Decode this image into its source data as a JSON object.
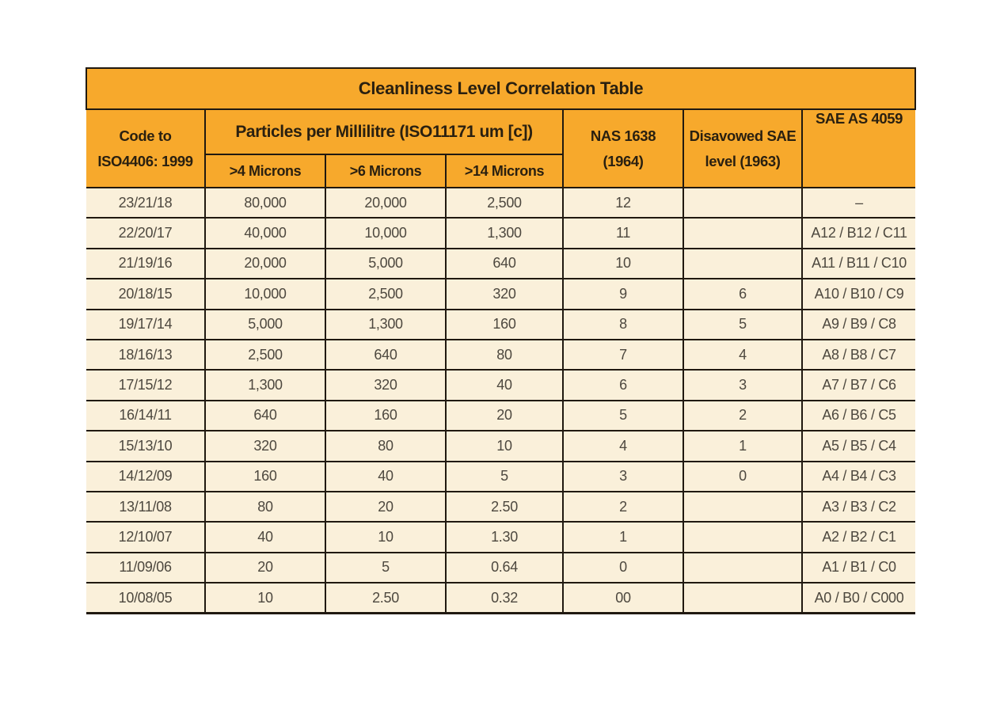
{
  "title": "Cleanliness Level Correlation Table",
  "colors": {
    "header_bg": "#F7A92C",
    "row_bg": "#FAF0DA",
    "border": "#201910",
    "header_text": "#2A2010",
    "data_text": "#4D483F",
    "page_bg": "#FFFFFF"
  },
  "header": {
    "code_col": "Code to\nISO4406: 1999",
    "particles_group": "Particles per Millilitre (ISO11171 um [c])",
    "micron_cols": [
      ">4 Microns",
      ">6 Microns",
      ">14 Microns"
    ],
    "nas_col": "NAS 1638\n(1964)",
    "disavowed_col": "Disavowed SAE\nlevel (1963)",
    "sae_col": "SAE AS 4059"
  },
  "rows": [
    [
      "23/21/18",
      "80,000",
      "20,000",
      "2,500",
      "12",
      "",
      "–"
    ],
    [
      "22/20/17",
      "40,000",
      "10,000",
      "1,300",
      "11",
      "",
      "A12 / B12 / C11"
    ],
    [
      "21/19/16",
      "20,000",
      "5,000",
      "640",
      "10",
      "",
      "A11 / B11 / C10"
    ],
    [
      "20/18/15",
      "10,000",
      "2,500",
      "320",
      "9",
      "6",
      "A10 / B10 / C9"
    ],
    [
      "19/17/14",
      "5,000",
      "1,300",
      "160",
      "8",
      "5",
      "A9 / B9 / C8"
    ],
    [
      "18/16/13",
      "2,500",
      "640",
      "80",
      "7",
      "4",
      "A8 / B8 / C7"
    ],
    [
      "17/15/12",
      "1,300",
      "320",
      "40",
      "6",
      "3",
      "A7 / B7 / C6"
    ],
    [
      "16/14/11",
      "640",
      "160",
      "20",
      "5",
      "2",
      "A6 / B6 / C5"
    ],
    [
      "15/13/10",
      "320",
      "80",
      "10",
      "4",
      "1",
      "A5 / B5 / C4"
    ],
    [
      "14/12/09",
      "160",
      "40",
      "5",
      "3",
      "0",
      "A4 / B4 / C3"
    ],
    [
      "13/11/08",
      "80",
      "20",
      "2.50",
      "2",
      "",
      "A3 / B3 / C2"
    ],
    [
      "12/10/07",
      "40",
      "10",
      "1.30",
      "1",
      "",
      "A2 / B2 / C1"
    ],
    [
      "11/09/06",
      "20",
      "5",
      "0.64",
      "0",
      "",
      "A1 / B1 / C0"
    ],
    [
      "10/08/05",
      "10",
      "2.50",
      "0.32",
      "00",
      "",
      "A0 / B0 / C000"
    ]
  ],
  "column_names": [
    "iso4406-code",
    "gt4-microns",
    "gt6-microns",
    "gt14-microns",
    "nas-1638",
    "disavowed-sae",
    "sae-as-4059"
  ]
}
